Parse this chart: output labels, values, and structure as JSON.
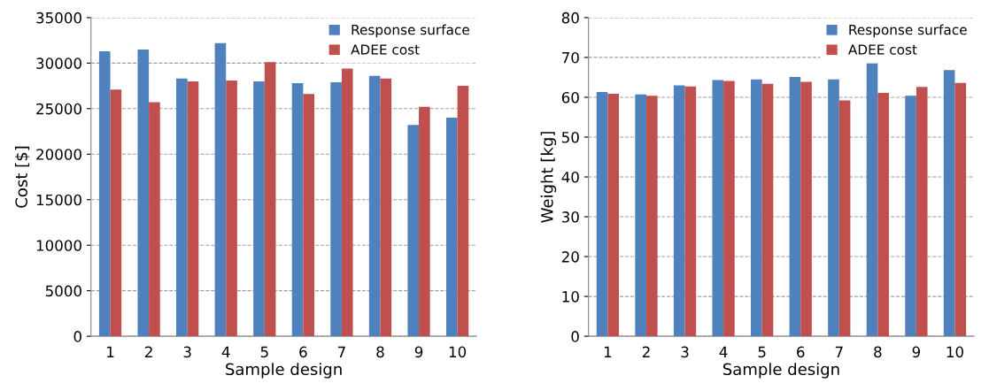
{
  "chart_data": [
    {
      "type": "bar",
      "xlabel": "Sample design",
      "ylabel": "Cost [$]",
      "categories": [
        "1",
        "2",
        "3",
        "4",
        "5",
        "6",
        "7",
        "8",
        "9",
        "10"
      ],
      "series": [
        {
          "name": "Response surface",
          "color": "#4f81bd",
          "values": [
            31300,
            31500,
            28300,
            32200,
            28000,
            27800,
            27900,
            28600,
            23200,
            24000
          ]
        },
        {
          "name": "ADEE cost",
          "color": "#c0504d",
          "values": [
            27100,
            25700,
            28000,
            28100,
            30100,
            26600,
            29400,
            28300,
            25200,
            27500
          ]
        }
      ],
      "ylim": [
        0,
        35000
      ],
      "yticks": [
        0,
        5000,
        10000,
        15000,
        20000,
        25000,
        30000,
        35000
      ],
      "grid": "y",
      "legend": "top right"
    },
    {
      "type": "bar",
      "xlabel": "Sample design",
      "ylabel": "Weight [kg]",
      "categories": [
        "1",
        "2",
        "3",
        "4",
        "5",
        "6",
        "7",
        "8",
        "9",
        "10"
      ],
      "series": [
        {
          "name": "Response surface",
          "color": "#4f81bd",
          "values": [
            61.3,
            60.7,
            63.0,
            64.3,
            64.5,
            65.1,
            64.5,
            68.6,
            60.4,
            66.8
          ]
        },
        {
          "name": "ADEE cost",
          "color": "#c0504d",
          "values": [
            60.9,
            60.4,
            62.7,
            64.1,
            63.4,
            63.9,
            59.2,
            61.1,
            62.6,
            63.6
          ]
        }
      ],
      "ylim": [
        0,
        80
      ],
      "yticks": [
        0,
        10,
        20,
        30,
        40,
        50,
        60,
        70,
        80
      ],
      "grid": "y",
      "legend": "top right"
    }
  ]
}
